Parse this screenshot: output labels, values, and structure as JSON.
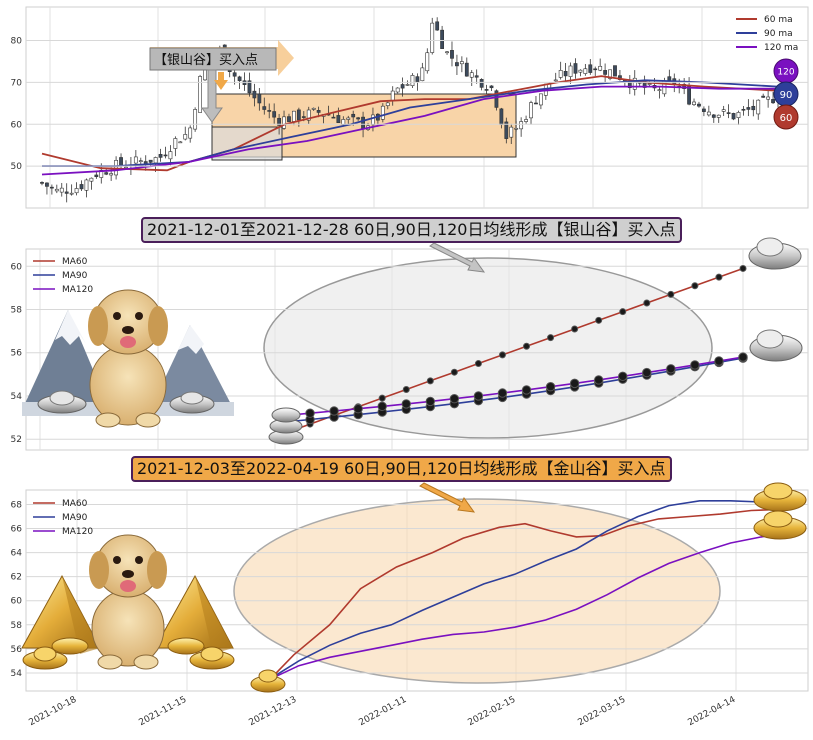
{
  "banners": {
    "silver": "2021-12-01至2021-12-28 60日,90日,120日均线形成【银山谷】买入点",
    "gold": "2021-12-03至2022-04-19 60日,90日,120日均线形成【金山谷】买入点",
    "silver_callout": "【银山谷】买入点"
  },
  "colors": {
    "ma60": "#b03a2e",
    "ma90": "#2e3f9a",
    "ma120": "#7a10c0",
    "silver_fill": "#c8c8c8",
    "gold_fill": "#f0a848",
    "zone": "#f8d4a8"
  },
  "icons": [
    "golden-retriever-puppy-icon",
    "snowy-mountain-icon",
    "silver-ingot-icon",
    "gold-pyramid-icon",
    "gold-ingot-icon"
  ],
  "chart_data": [
    {
      "type": "candlestick",
      "title": "",
      "legend": [
        {
          "name": "60 ma"
        },
        {
          "name": "90 ma"
        },
        {
          "name": "120 ma"
        }
      ],
      "legend_position": "top-right",
      "y_ticks": [
        "50",
        "60",
        "70",
        "80"
      ],
      "ylim": [
        40,
        88
      ],
      "grid": true,
      "end_badges": [
        {
          "label": "120",
          "value": 71.5
        },
        {
          "label": "90",
          "value": 68
        },
        {
          "label": "60",
          "value": 63
        }
      ],
      "highlight_zone": {
        "y_range": [
          53,
          68
        ]
      },
      "silver_box": {
        "y_range": [
          52,
          60
        ]
      },
      "close_path": [
        [
          0,
          46
        ],
        [
          0.02,
          44
        ],
        [
          0.05,
          45
        ],
        [
          0.07,
          48
        ],
        [
          0.1,
          50
        ],
        [
          0.13,
          51
        ],
        [
          0.16,
          52
        ],
        [
          0.18,
          56
        ],
        [
          0.2,
          58
        ],
        [
          0.22,
          75
        ],
        [
          0.24,
          78
        ],
        [
          0.26,
          72
        ],
        [
          0.28,
          68
        ],
        [
          0.3,
          64
        ],
        [
          0.32,
          61
        ],
        [
          0.35,
          62
        ],
        [
          0.38,
          63
        ],
        [
          0.41,
          61
        ],
        [
          0.44,
          60
        ],
        [
          0.46,
          62
        ],
        [
          0.48,
          68
        ],
        [
          0.5,
          70
        ],
        [
          0.52,
          73
        ],
        [
          0.53,
          85
        ],
        [
          0.55,
          77
        ],
        [
          0.57,
          74
        ],
        [
          0.59,
          71
        ],
        [
          0.61,
          69
        ],
        [
          0.62,
          64
        ],
        [
          0.63,
          57
        ],
        [
          0.65,
          60
        ],
        [
          0.67,
          66
        ],
        [
          0.69,
          70
        ],
        [
          0.72,
          73
        ],
        [
          0.75,
          74
        ],
        [
          0.78,
          72
        ],
        [
          0.8,
          70
        ],
        [
          0.83,
          68
        ],
        [
          0.86,
          70
        ],
        [
          0.88,
          66
        ],
        [
          0.91,
          63
        ],
        [
          0.94,
          62
        ],
        [
          0.97,
          64
        ],
        [
          1.0,
          67
        ]
      ],
      "ma60_path": [
        [
          0,
          53
        ],
        [
          0.08,
          49.5
        ],
        [
          0.17,
          49
        ],
        [
          0.2,
          51
        ],
        [
          0.26,
          54
        ],
        [
          0.33,
          60
        ],
        [
          0.4,
          63
        ],
        [
          0.46,
          65.5
        ],
        [
          0.52,
          66
        ],
        [
          0.58,
          66
        ],
        [
          0.64,
          68
        ],
        [
          0.7,
          70
        ],
        [
          0.76,
          71.5
        ],
        [
          0.82,
          70
        ],
        [
          0.9,
          69
        ],
        [
          1.0,
          68
        ]
      ],
      "ma90_path": [
        [
          0,
          50
        ],
        [
          0.1,
          50
        ],
        [
          0.2,
          51
        ],
        [
          0.26,
          54
        ],
        [
          0.34,
          57
        ],
        [
          0.42,
          60
        ],
        [
          0.5,
          64
        ],
        [
          0.58,
          66
        ],
        [
          0.66,
          68
        ],
        [
          0.74,
          69.5
        ],
        [
          0.82,
          70.5
        ],
        [
          0.9,
          70
        ],
        [
          1.0,
          69
        ]
      ],
      "ma120_path": [
        [
          0,
          48
        ],
        [
          0.1,
          49
        ],
        [
          0.2,
          51
        ],
        [
          0.28,
          54
        ],
        [
          0.36,
          56
        ],
        [
          0.44,
          59
        ],
        [
          0.52,
          62
        ],
        [
          0.6,
          66
        ],
        [
          0.68,
          68
        ],
        [
          0.76,
          69
        ],
        [
          0.84,
          69
        ],
        [
          0.92,
          68.5
        ],
        [
          1.0,
          68.5
        ]
      ]
    },
    {
      "type": "line",
      "title": "",
      "legend": [
        {
          "name": "MA60"
        },
        {
          "name": "MA90"
        },
        {
          "name": "MA120"
        }
      ],
      "legend_position": "top-left",
      "y_ticks": [
        "52",
        "54",
        "56",
        "58",
        "60"
      ],
      "ylim": [
        51.5,
        60.8
      ],
      "grid": true,
      "series": [
        {
          "name": "MA60",
          "start": 52.3,
          "end": 59.9,
          "points": 20
        },
        {
          "name": "MA90",
          "start": 52.8,
          "end": 55.75,
          "points": 20
        },
        {
          "name": "MA120",
          "start": 53.1,
          "end": 55.8,
          "points": 20
        }
      ]
    },
    {
      "type": "line",
      "title": "",
      "legend": [
        {
          "name": "MA60"
        },
        {
          "name": "MA90"
        },
        {
          "name": "MA120"
        }
      ],
      "legend_position": "top-left",
      "y_ticks": [
        "54",
        "56",
        "58",
        "60",
        "62",
        "64",
        "66",
        "68"
      ],
      "ylim": [
        52.5,
        69.2
      ],
      "grid": true,
      "x_ticks": [
        "2021-10-18",
        "2021-11-15",
        "2021-12-13",
        "2022-01-11",
        "2022-02-15",
        "2022-03-15",
        "2022-04-14"
      ],
      "ma60": [
        [
          0,
          53.3
        ],
        [
          0.05,
          55.5
        ],
        [
          0.12,
          58
        ],
        [
          0.18,
          61
        ],
        [
          0.25,
          62.8
        ],
        [
          0.32,
          64
        ],
        [
          0.38,
          65.2
        ],
        [
          0.45,
          66.1
        ],
        [
          0.5,
          66.4
        ],
        [
          0.55,
          65.8
        ],
        [
          0.6,
          65.3
        ],
        [
          0.65,
          65.4
        ],
        [
          0.7,
          66.2
        ],
        [
          0.76,
          66.8
        ],
        [
          0.82,
          67
        ],
        [
          0.88,
          67.2
        ],
        [
          0.94,
          67.5
        ],
        [
          1.0,
          67.6
        ]
      ],
      "ma90": [
        [
          0,
          53.4
        ],
        [
          0.06,
          55
        ],
        [
          0.12,
          56.3
        ],
        [
          0.18,
          57.3
        ],
        [
          0.24,
          58
        ],
        [
          0.3,
          59.2
        ],
        [
          0.36,
          60.3
        ],
        [
          0.42,
          61.4
        ],
        [
          0.48,
          62.2
        ],
        [
          0.54,
          63.3
        ],
        [
          0.6,
          64.3
        ],
        [
          0.66,
          65.8
        ],
        [
          0.72,
          67
        ],
        [
          0.78,
          67.9
        ],
        [
          0.84,
          68.3
        ],
        [
          0.9,
          68.3
        ],
        [
          0.96,
          68.2
        ],
        [
          1.0,
          68.1
        ]
      ],
      "ma120": [
        [
          0,
          53.4
        ],
        [
          0.06,
          54.6
        ],
        [
          0.12,
          55.3
        ],
        [
          0.18,
          55.8
        ],
        [
          0.24,
          56.3
        ],
        [
          0.3,
          56.8
        ],
        [
          0.36,
          57.2
        ],
        [
          0.42,
          57.4
        ],
        [
          0.48,
          57.8
        ],
        [
          0.54,
          58.4
        ],
        [
          0.6,
          59.3
        ],
        [
          0.66,
          60.5
        ],
        [
          0.72,
          61.9
        ],
        [
          0.78,
          63.1
        ],
        [
          0.84,
          64
        ],
        [
          0.9,
          64.8
        ],
        [
          0.96,
          65.3
        ],
        [
          1.0,
          65.6
        ]
      ]
    }
  ]
}
